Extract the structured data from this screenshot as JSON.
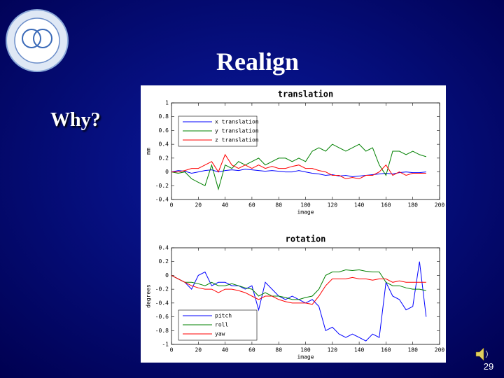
{
  "slide": {
    "title": "Realign",
    "bullet": "Why?",
    "page_number": "29"
  },
  "chart_data": [
    {
      "type": "line",
      "title": "translation",
      "xlabel": "image",
      "ylabel": "mm",
      "x": [
        0,
        5,
        10,
        15,
        20,
        25,
        30,
        35,
        40,
        45,
        50,
        55,
        60,
        65,
        70,
        75,
        80,
        85,
        90,
        95,
        100,
        105,
        110,
        115,
        120,
        125,
        130,
        135,
        140,
        145,
        150,
        155,
        160,
        165,
        170,
        175,
        180,
        185,
        190
      ],
      "xlim": [
        0,
        200
      ],
      "xticks": [
        0,
        20,
        40,
        60,
        80,
        100,
        120,
        140,
        160,
        180,
        200
      ],
      "ylim": [
        -0.4,
        1
      ],
      "yticks": [
        -0.4,
        -0.2,
        0,
        0.2,
        0.4,
        0.6,
        0.8,
        1
      ],
      "legend": "upper left",
      "grid": false,
      "series": [
        {
          "name": "x translation",
          "color": "#0000ff",
          "values": [
            0,
            0.02,
            0.01,
            -0.02,
            0,
            0.02,
            0.03,
            0,
            0.02,
            0.03,
            0.02,
            0.04,
            0.03,
            0.02,
            0.01,
            0.02,
            0.01,
            0,
            0,
            0.02,
            0,
            -0.02,
            -0.03,
            -0.05,
            -0.04,
            -0.06,
            -0.05,
            -0.07,
            -0.06,
            -0.05,
            -0.04,
            -0.03,
            -0.02,
            -0.03,
            -0.01,
            0,
            -0.01,
            -0.01,
            0
          ]
        },
        {
          "name": "y translation",
          "color": "#008000",
          "values": [
            0,
            -0.02,
            0,
            -0.1,
            -0.15,
            -0.2,
            0.1,
            -0.25,
            0.1,
            0.05,
            0.15,
            0.1,
            0.15,
            0.2,
            0.1,
            0.15,
            0.2,
            0.2,
            0.15,
            0.2,
            0.15,
            0.3,
            0.35,
            0.3,
            0.4,
            0.35,
            0.3,
            0.35,
            0.4,
            0.3,
            0.35,
            0.1,
            -0.05,
            0.3,
            0.3,
            0.25,
            0.3,
            0.25,
            0.22
          ]
        },
        {
          "name": "z translation",
          "color": "#ff0000",
          "values": [
            0,
            0,
            0.02,
            0.05,
            0.05,
            0.1,
            0.15,
            0,
            0.25,
            0.1,
            0.05,
            0.1,
            0.05,
            0.1,
            0.05,
            0.08,
            0.05,
            0.05,
            0.08,
            0.1,
            0.05,
            0.05,
            0.02,
            0,
            -0.05,
            -0.05,
            -0.1,
            -0.08,
            -0.1,
            -0.05,
            -0.05,
            0,
            0.1,
            -0.05,
            0,
            -0.05,
            -0.02,
            -0.02,
            -0.02
          ]
        }
      ]
    },
    {
      "type": "line",
      "title": "rotation",
      "xlabel": "image",
      "ylabel": "degrees",
      "x": [
        0,
        5,
        10,
        15,
        20,
        25,
        30,
        35,
        40,
        45,
        50,
        55,
        60,
        65,
        70,
        75,
        80,
        85,
        90,
        95,
        100,
        105,
        110,
        115,
        120,
        125,
        130,
        135,
        140,
        145,
        150,
        155,
        160,
        165,
        170,
        175,
        180,
        185,
        190
      ],
      "xlim": [
        0,
        200
      ],
      "xticks": [
        0,
        20,
        40,
        60,
        80,
        100,
        120,
        140,
        160,
        180,
        200
      ],
      "ylim": [
        -1,
        0.4
      ],
      "yticks": [
        -1,
        -0.8,
        -0.6,
        -0.4,
        -0.2,
        0,
        0.2,
        0.4
      ],
      "legend": "lower left",
      "grid": false,
      "series": [
        {
          "name": "pitch",
          "color": "#0000ff",
          "values": [
            0,
            -0.05,
            -0.1,
            -0.2,
            0,
            0.05,
            -0.15,
            -0.1,
            -0.1,
            -0.15,
            -0.15,
            -0.2,
            -0.15,
            -0.5,
            -0.1,
            -0.2,
            -0.3,
            -0.35,
            -0.3,
            -0.35,
            -0.4,
            -0.35,
            -0.45,
            -0.8,
            -0.75,
            -0.85,
            -0.9,
            -0.85,
            -0.9,
            -0.95,
            -0.85,
            -0.9,
            -0.1,
            -0.3,
            -0.35,
            -0.5,
            -0.45,
            0.2,
            -0.6
          ]
        },
        {
          "name": "roll",
          "color": "#008000",
          "values": [
            0,
            -0.05,
            -0.1,
            -0.1,
            -0.12,
            -0.15,
            -0.1,
            -0.15,
            -0.15,
            -0.12,
            -0.15,
            -0.18,
            -0.2,
            -0.3,
            -0.25,
            -0.3,
            -0.3,
            -0.32,
            -0.35,
            -0.35,
            -0.32,
            -0.3,
            -0.2,
            0,
            0.05,
            0.05,
            0.08,
            0.07,
            0.08,
            0.06,
            0.05,
            0.05,
            -0.1,
            -0.15,
            -0.15,
            -0.18,
            -0.2,
            -0.2,
            -0.22
          ]
        },
        {
          "name": "yaw",
          "color": "#ff0000",
          "values": [
            0,
            -0.05,
            -0.1,
            -0.15,
            -0.18,
            -0.2,
            -0.2,
            -0.25,
            -0.2,
            -0.2,
            -0.22,
            -0.25,
            -0.3,
            -0.35,
            -0.3,
            -0.3,
            -0.35,
            -0.38,
            -0.4,
            -0.4,
            -0.4,
            -0.42,
            -0.3,
            -0.15,
            -0.05,
            -0.05,
            -0.05,
            -0.03,
            -0.05,
            -0.05,
            -0.07,
            -0.05,
            -0.05,
            -0.1,
            -0.08,
            -0.1,
            -0.1,
            -0.1,
            -0.1
          ]
        }
      ]
    }
  ]
}
